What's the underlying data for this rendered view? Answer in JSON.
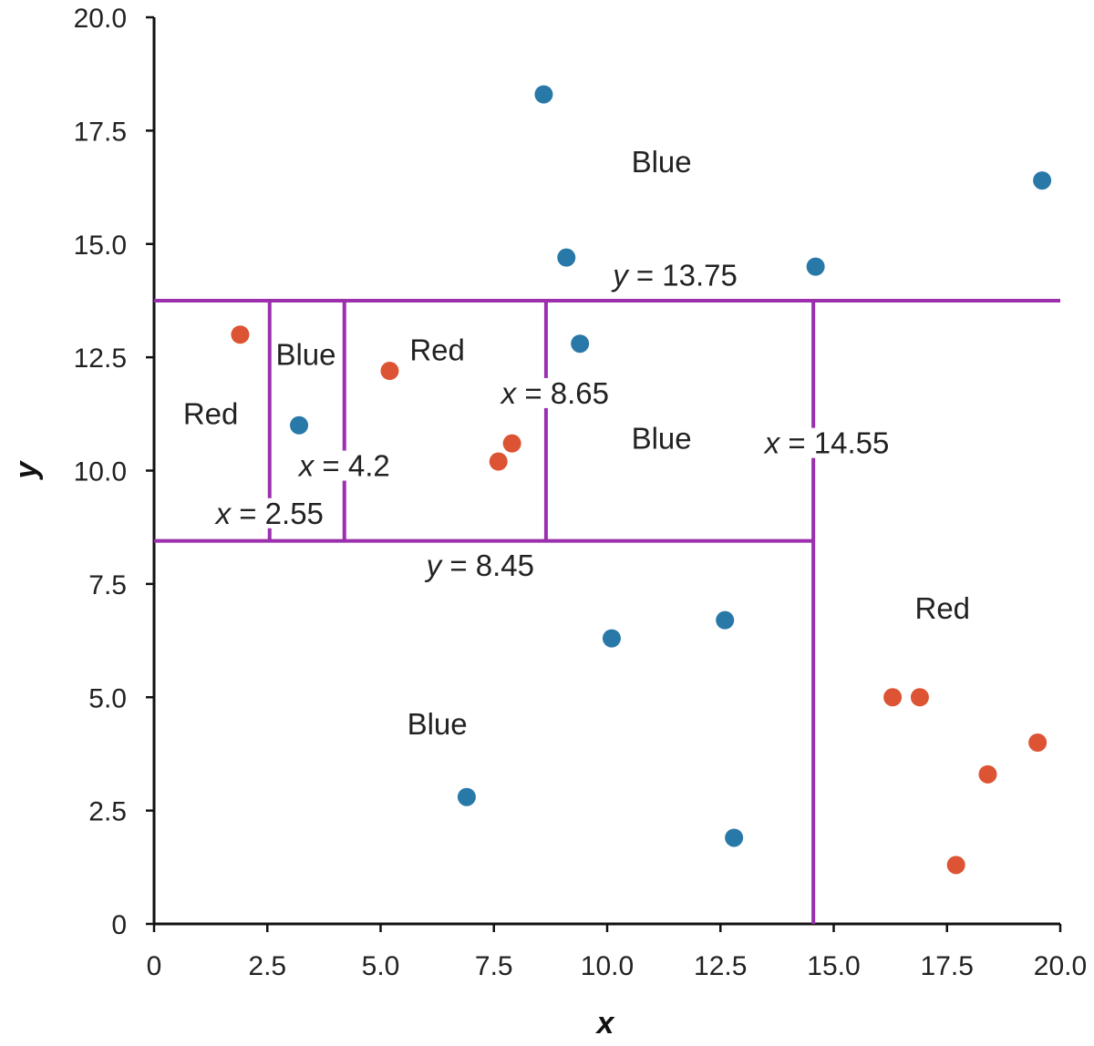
{
  "chart_data": {
    "type": "scatter",
    "title": "",
    "xlabel": "x",
    "ylabel": "y",
    "xlim": [
      0,
      20
    ],
    "ylim": [
      0,
      20
    ],
    "grid": false,
    "x_ticks": [
      "0",
      "2.5",
      "5.0",
      "7.5",
      "10.0",
      "12.5",
      "15.0",
      "17.5",
      "20.0"
    ],
    "y_ticks": [
      "0",
      "2.5",
      "5.0",
      "7.5",
      "10.0",
      "12.5",
      "15.0",
      "17.5",
      "20.0"
    ],
    "colors": {
      "blue": "#2878a8",
      "red": "#dc5434",
      "split": "#9b2fae"
    },
    "series": [
      {
        "color": "#2878a8",
        "points": [
          [
            8.6,
            18.3
          ],
          [
            19.6,
            16.4
          ],
          [
            9.1,
            14.7
          ],
          [
            14.6,
            14.5
          ],
          [
            9.4,
            12.8
          ],
          [
            3.2,
            11.0
          ],
          [
            10.1,
            6.3
          ],
          [
            12.6,
            6.7
          ],
          [
            6.9,
            2.8
          ],
          [
            12.8,
            1.9
          ]
        ]
      },
      {
        "color": "#dc5434",
        "points": [
          [
            1.9,
            13.0
          ],
          [
            5.2,
            12.2
          ],
          [
            7.9,
            10.6
          ],
          [
            7.6,
            10.2
          ],
          [
            16.3,
            5.0
          ],
          [
            16.9,
            5.0
          ],
          [
            19.5,
            4.0
          ],
          [
            18.4,
            3.3
          ],
          [
            17.7,
            1.3
          ]
        ]
      }
    ],
    "splits": [
      {
        "orientation": "horizontal",
        "value": 13.75,
        "from": 0,
        "to": 20,
        "var": "y",
        "num": "13.75",
        "label_at": [
          11.5,
          14.3
        ]
      },
      {
        "orientation": "horizontal",
        "value": 8.45,
        "from": 0,
        "to": 14.55,
        "var": "y",
        "num": "8.45",
        "label_at": [
          7.2,
          7.9
        ]
      },
      {
        "orientation": "vertical",
        "value": 14.55,
        "from": 0,
        "to": 13.75,
        "var": "x",
        "num": "14.55",
        "label_at": [
          14.85,
          10.6
        ]
      },
      {
        "orientation": "vertical",
        "value": 8.65,
        "from": 8.45,
        "to": 13.75,
        "var": "x",
        "num": "8.65",
        "label_at": [
          8.85,
          11.7
        ]
      },
      {
        "orientation": "vertical",
        "value": 4.2,
        "from": 8.45,
        "to": 13.75,
        "var": "x",
        "num": "4.2",
        "label_at": [
          4.2,
          10.1
        ]
      },
      {
        "orientation": "vertical",
        "value": 2.55,
        "from": 8.45,
        "to": 13.75,
        "var": "x",
        "num": "2.55",
        "label_at": [
          2.55,
          9.05
        ]
      }
    ],
    "annotations": [
      {
        "text": "Blue",
        "x": 11.2,
        "y": 16.8
      },
      {
        "text": "Red",
        "x": 1.25,
        "y": 11.25
      },
      {
        "text": "Blue",
        "x": 3.35,
        "y": 12.55
      },
      {
        "text": "Red",
        "x": 6.25,
        "y": 12.65
      },
      {
        "text": "Blue",
        "x": 11.2,
        "y": 10.7
      },
      {
        "text": "Red",
        "x": 17.4,
        "y": 6.95
      },
      {
        "text": "Blue",
        "x": 6.25,
        "y": 4.4
      }
    ]
  }
}
